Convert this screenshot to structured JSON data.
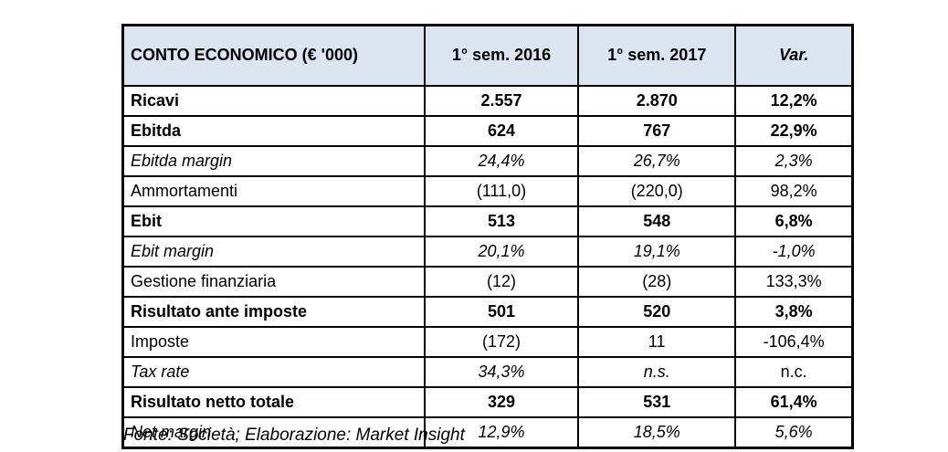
{
  "table": {
    "title": "CONTO ECONOMICO (€ '000)",
    "columns": [
      "1° sem. 2016",
      "1° sem. 2017",
      "Var."
    ],
    "rows": [
      {
        "label": "Ricavi",
        "v2016": "2.557",
        "v2017": "2.870",
        "var": "12,2%",
        "style": "bold"
      },
      {
        "label": "Ebitda",
        "v2016": "624",
        "v2017": "767",
        "var": "22,9%",
        "style": "bold"
      },
      {
        "label": "Ebitda margin",
        "v2016": "24,4%",
        "v2017": "26,7%",
        "var": "2,3%",
        "style": "italic"
      },
      {
        "label": "Ammortamenti",
        "v2016": "(111,0)",
        "v2017": "(220,0)",
        "var": "98,2%",
        "style": "regular"
      },
      {
        "label": "Ebit",
        "v2016": "513",
        "v2017": "548",
        "var": "6,8%",
        "style": "bold"
      },
      {
        "label": "Ebit margin",
        "v2016": "20,1%",
        "v2017": "19,1%",
        "var": "-1,0%",
        "style": "italic"
      },
      {
        "label": "Gestione finanziaria",
        "v2016": "(12)",
        "v2017": "(28)",
        "var": "133,3%",
        "style": "regular"
      },
      {
        "label": "Risultato ante imposte",
        "v2016": "501",
        "v2017": "520",
        "var": "3,8%",
        "style": "bold"
      },
      {
        "label": "Imposte",
        "v2016": "(172)",
        "v2017": "11",
        "var": "-106,4%",
        "style": "regular"
      },
      {
        "label": "Tax rate",
        "v2016": "34,3%",
        "v2017": "n.s.",
        "var": "n.c.",
        "style": "italic",
        "var_style": "regular"
      },
      {
        "label": "Risultato netto totale",
        "v2016": "329",
        "v2017": "531",
        "var": "61,4%",
        "style": "bold"
      },
      {
        "label": "Net margin",
        "v2016": "12,9%",
        "v2017": "18,5%",
        "var": "5,6%",
        "style": "italic"
      }
    ],
    "footer": "Fonte: Società; Elaborazione: Market Insight"
  },
  "colors": {
    "header_bg": "#dbe5f1",
    "border": "#000000",
    "text": "#000000"
  }
}
